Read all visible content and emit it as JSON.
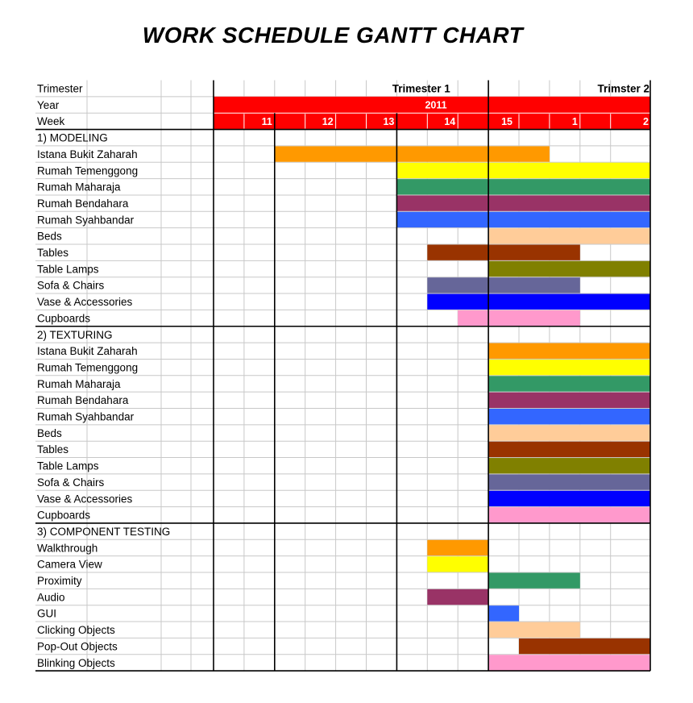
{
  "chart_data": {
    "type": "gantt",
    "title": "WORK SCHEDULE GANTT CHART",
    "header": {
      "trimester_label": "Trimester",
      "year_label": "Year",
      "week_label": "Week",
      "trimesters": [
        "Trimester 1",
        "Trimster 2"
      ],
      "year": "2011",
      "weeks": [
        "11",
        "12",
        "13",
        "14",
        "15",
        "1",
        "2"
      ],
      "header_color": "#ff0000"
    },
    "sections": [
      {
        "name": "1) MODELING",
        "tasks": [
          {
            "name": "Istana Bukit Zaharah",
            "start": 2,
            "end": 11,
            "color": "#ff9900"
          },
          {
            "name": "Rumah Temenggong",
            "start": 6,
            "end": 14,
            "color": "#ffff00"
          },
          {
            "name": "Rumah Maharaja",
            "start": 6,
            "end": 14,
            "color": "#339966"
          },
          {
            "name": "Rumah Bendahara",
            "start": 6,
            "end": 14,
            "color": "#993366"
          },
          {
            "name": "Rumah Syahbandar",
            "start": 6,
            "end": 14,
            "color": "#3366ff"
          },
          {
            "name": "Beds",
            "start": 9,
            "end": 14,
            "color": "#ffcc99"
          },
          {
            "name": "Tables",
            "start": 7,
            "end": 12,
            "color": "#993300"
          },
          {
            "name": "Table Lamps",
            "start": 9,
            "end": 14,
            "color": "#808000"
          },
          {
            "name": "Sofa & Chairs",
            "start": 7,
            "end": 12,
            "color": "#666699"
          },
          {
            "name": "Vase & Accessories",
            "start": 7,
            "end": 14,
            "color": "#0000ff"
          },
          {
            "name": "Cupboards",
            "start": 8,
            "end": 12,
            "color": "#ff99cc"
          }
        ]
      },
      {
        "name": "2) TEXTURING",
        "tasks": [
          {
            "name": "Istana Bukit Zaharah",
            "start": 9,
            "end": 14,
            "color": "#ff9900"
          },
          {
            "name": "Rumah Temenggong",
            "start": 9,
            "end": 14,
            "color": "#ffff00"
          },
          {
            "name": "Rumah Maharaja",
            "start": 9,
            "end": 14,
            "color": "#339966"
          },
          {
            "name": "Rumah Bendahara",
            "start": 9,
            "end": 14,
            "color": "#993366"
          },
          {
            "name": "Rumah Syahbandar",
            "start": 9,
            "end": 14,
            "color": "#3366ff"
          },
          {
            "name": "Beds",
            "start": 9,
            "end": 14,
            "color": "#ffcc99"
          },
          {
            "name": "Tables",
            "start": 9,
            "end": 14,
            "color": "#993300"
          },
          {
            "name": "Table Lamps",
            "start": 9,
            "end": 14,
            "color": "#808000"
          },
          {
            "name": "Sofa & Chairs",
            "start": 9,
            "end": 14,
            "color": "#666699"
          },
          {
            "name": "Vase & Accessories",
            "start": 9,
            "end": 14,
            "color": "#0000ff"
          },
          {
            "name": "Cupboards",
            "start": 9,
            "end": 14,
            "color": "#ff99cc"
          }
        ]
      },
      {
        "name": "3) COMPONENT TESTING",
        "tasks": [
          {
            "name": "Walkthrough",
            "start": 7,
            "end": 9,
            "color": "#ff9900"
          },
          {
            "name": "Camera View",
            "start": 7,
            "end": 9,
            "color": "#ffff00"
          },
          {
            "name": "Proximity",
            "start": 9,
            "end": 12,
            "color": "#339966"
          },
          {
            "name": "Audio",
            "start": 7,
            "end": 9,
            "color": "#993366"
          },
          {
            "name": "GUI",
            "start": 9,
            "end": 10,
            "color": "#3366ff"
          },
          {
            "name": "Clicking Objects",
            "start": 9,
            "end": 12,
            "color": "#ffcc99"
          },
          {
            "name": "Pop-Out Objects",
            "start": 10,
            "end": 14,
            "color": "#993300"
          },
          {
            "name": "Blinking Objects",
            "start": 9,
            "end": 14,
            "color": "#ff99cc"
          }
        ]
      }
    ]
  }
}
